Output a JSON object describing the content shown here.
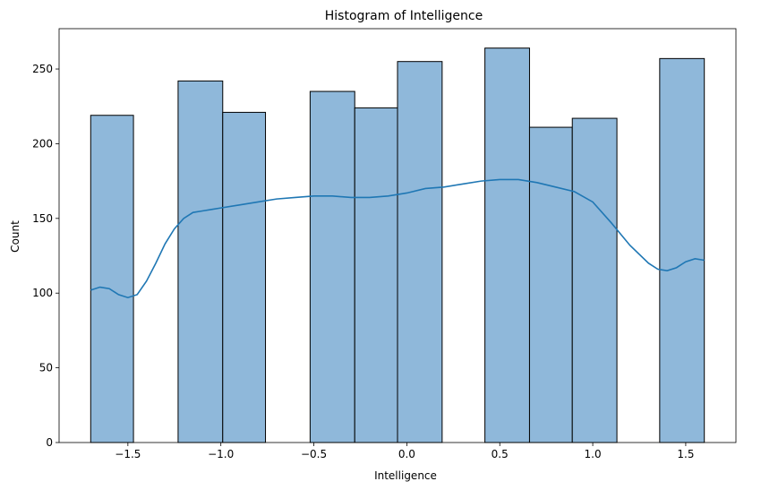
{
  "chart_data": {
    "type": "bar",
    "title": "Histogram of Intelligence",
    "xlabel": "Intelligence",
    "ylabel": "Count",
    "xlim": [
      -1.87,
      1.77
    ],
    "ylim": [
      0,
      277
    ],
    "xticks": [
      -1.5,
      -1.0,
      -0.5,
      0.0,
      0.5,
      1.0,
      1.5
    ],
    "xtick_labels": [
      "−1.5",
      "−1.0",
      "−0.5",
      "0.0",
      "0.5",
      "1.0",
      "1.5"
    ],
    "yticks": [
      0,
      50,
      100,
      150,
      200,
      250
    ],
    "ytick_labels": [
      "0",
      "50",
      "100",
      "150",
      "200",
      "250"
    ],
    "grid": false,
    "bar_fill": "#8fb8da",
    "bar_edge": "#000000",
    "kde_color": "#1f77b4",
    "bins": [
      {
        "x0": -1.7,
        "x1": -1.47,
        "count": 219
      },
      {
        "x0": -1.47,
        "x1": -1.23,
        "count": 0
      },
      {
        "x0": -1.23,
        "x1": -0.99,
        "count": 242
      },
      {
        "x0": -0.99,
        "x1": -0.76,
        "count": 221
      },
      {
        "x0": -0.76,
        "x1": -0.52,
        "count": 0
      },
      {
        "x0": -0.52,
        "x1": -0.28,
        "count": 235
      },
      {
        "x0": -0.28,
        "x1": -0.05,
        "count": 224
      },
      {
        "x0": -0.05,
        "x1": 0.19,
        "count": 255
      },
      {
        "x0": 0.19,
        "x1": 0.42,
        "count": 0
      },
      {
        "x0": 0.42,
        "x1": 0.66,
        "count": 264
      },
      {
        "x0": 0.66,
        "x1": 0.89,
        "count": 211
      },
      {
        "x0": 0.89,
        "x1": 1.13,
        "count": 217
      },
      {
        "x0": 1.13,
        "x1": 1.36,
        "count": 0
      },
      {
        "x0": 1.36,
        "x1": 1.6,
        "count": 257
      }
    ],
    "kde": {
      "x": [
        -1.7,
        -1.65,
        -1.6,
        -1.55,
        -1.5,
        -1.45,
        -1.4,
        -1.35,
        -1.3,
        -1.25,
        -1.2,
        -1.15,
        -1.1,
        -1.05,
        -1.0,
        -0.9,
        -0.8,
        -0.7,
        -0.6,
        -0.5,
        -0.4,
        -0.3,
        -0.2,
        -0.1,
        0.0,
        0.1,
        0.2,
        0.3,
        0.4,
        0.5,
        0.6,
        0.7,
        0.8,
        0.9,
        1.0,
        1.1,
        1.2,
        1.3,
        1.35,
        1.4,
        1.45,
        1.5,
        1.55,
        1.6
      ],
      "y": [
        102,
        104,
        103,
        99,
        97,
        99,
        108,
        120,
        133,
        143,
        150,
        154,
        155,
        156,
        157,
        159,
        161,
        163,
        164,
        165,
        165,
        164,
        164,
        165,
        167,
        170,
        171,
        173,
        175,
        176,
        176,
        174,
        171,
        168,
        161,
        147,
        132,
        120,
        116,
        115,
        117,
        121,
        123,
        122
      ]
    }
  }
}
